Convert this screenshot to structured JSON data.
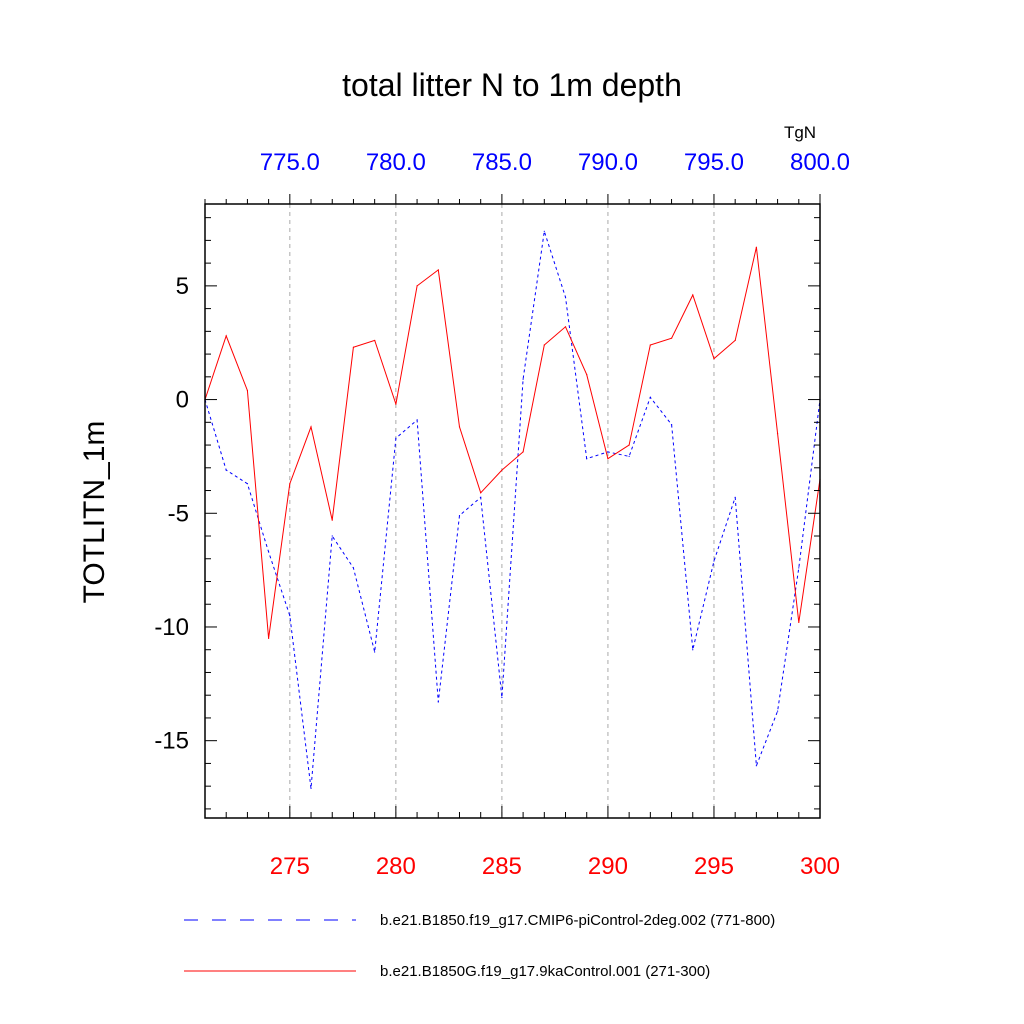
{
  "chart_data": {
    "type": "line",
    "title": "total litter N to 1m depth",
    "ylabel": "TOTLITN_1m",
    "top_axis_units": "TgN",
    "ylim": [
      -18.4,
      8.6
    ],
    "y_ticks": [
      5,
      0,
      -5,
      -10,
      -15
    ],
    "y_tick_labels": [
      "5",
      "0",
      "-5",
      "-10",
      "-15"
    ],
    "bottom_axis": {
      "range": [
        271,
        300
      ],
      "ticks": [
        275,
        280,
        285,
        290,
        295,
        300
      ],
      "tick_labels": [
        "275",
        "280",
        "285",
        "290",
        "295",
        "300"
      ],
      "color": "#ff0000"
    },
    "top_axis": {
      "range": [
        771,
        800
      ],
      "ticks": [
        775,
        780,
        785,
        790,
        795,
        800
      ],
      "tick_labels": [
        "775.0",
        "780.0",
        "785.0",
        "790.0",
        "795.0",
        "800.0"
      ],
      "color": "#0000ff"
    },
    "grid": "vertical dashed at major ticks",
    "series": [
      {
        "name": "b.e21.B1850.f19_g17.CMIP6-piControl-2deg.002 (771-800)",
        "color": "#0000ff",
        "dash": "dashed",
        "axis": "top",
        "x": [
          771,
          772,
          773,
          774,
          775,
          776,
          777,
          778,
          779,
          780,
          781,
          782,
          783,
          784,
          785,
          786,
          787,
          788,
          789,
          790,
          791,
          792,
          793,
          794,
          795,
          796,
          797,
          798,
          799,
          800
        ],
        "values": [
          0,
          -3.1,
          -3.7,
          -6.7,
          -9.5,
          -17.1,
          -6,
          -7.4,
          -11.1,
          -1.7,
          -0.9,
          -13.3,
          -5.1,
          -4.3,
          -13.1,
          0.9,
          7.4,
          4.5,
          -2.6,
          -2.3,
          -2.5,
          0.1,
          -1.1,
          -11,
          -7.1,
          -4.3,
          -16.1,
          -13.7,
          -7.4,
          0
        ]
      },
      {
        "name": "b.e21.B1850G.f19_g17.9kaControl.001 (271-300)",
        "color": "#ff0000",
        "dash": "solid",
        "axis": "bottom",
        "x": [
          271,
          272,
          273,
          274,
          275,
          276,
          277,
          278,
          279,
          280,
          281,
          282,
          283,
          284,
          285,
          286,
          287,
          288,
          289,
          290,
          291,
          292,
          293,
          294,
          295,
          296,
          297,
          298,
          299,
          300
        ],
        "values": [
          0,
          2.8,
          0.4,
          -10.5,
          -3.7,
          -1.2,
          -5.3,
          2.3,
          2.6,
          -0.2,
          5,
          5.7,
          -1.2,
          -4.1,
          -3.1,
          -2.3,
          2.4,
          3.2,
          1.1,
          -2.6,
          -2,
          2.4,
          2.7,
          4.6,
          1.8,
          2.6,
          6.7,
          -1.5,
          -9.8,
          -3.5
        ]
      }
    ],
    "legend_position": "bottom"
  }
}
